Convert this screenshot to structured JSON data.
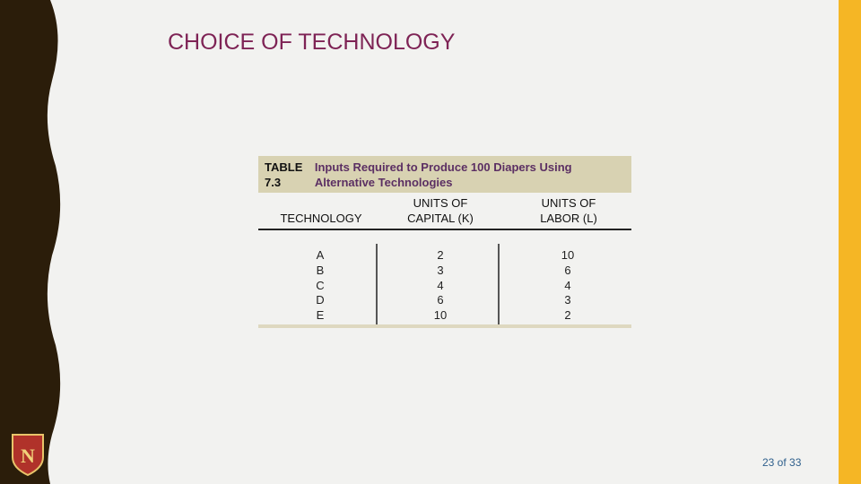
{
  "header": {
    "title": "CHOICE OF TECHNOLOGY"
  },
  "table": {
    "label": "TABLE 7.3",
    "caption": "Inputs Required to Produce 100 Diapers Using Alternative Technologies",
    "columns": [
      "TECHNOLOGY",
      "UNITS OF CAPITAL (K)",
      "UNITS OF LABOR (L)"
    ],
    "rows": [
      [
        "A",
        2,
        10
      ],
      [
        "B",
        3,
        6
      ],
      [
        "C",
        4,
        4
      ],
      [
        "D",
        6,
        3
      ],
      [
        "E",
        10,
        2
      ]
    ]
  },
  "footer": {
    "page": "23 of 33"
  }
}
